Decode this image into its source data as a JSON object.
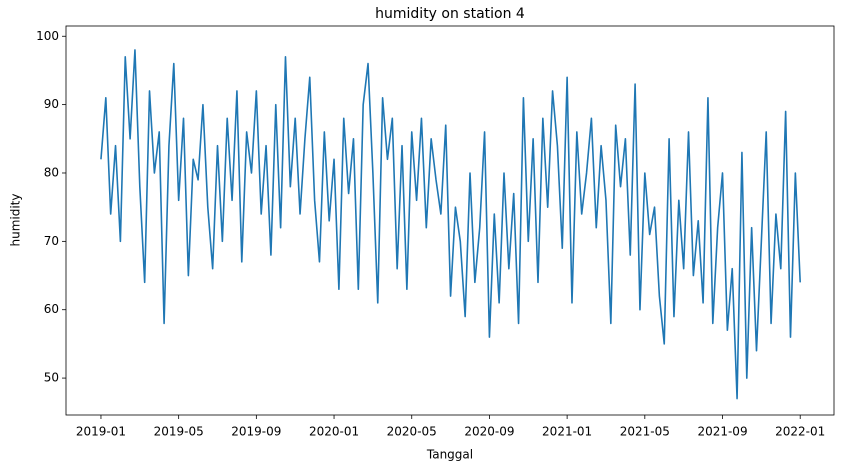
{
  "chart_data": {
    "type": "line",
    "title": "humidity on station 4",
    "x_label": "Tanggal",
    "y_label": "humidity",
    "x": [
      0,
      0.25,
      0.5,
      0.75,
      1,
      1.25,
      1.5,
      1.75,
      2,
      2.25,
      2.5,
      2.75,
      3,
      3.25,
      3.5,
      3.75,
      4,
      4.25,
      4.5,
      4.75,
      5,
      5.25,
      5.5,
      5.75,
      6,
      6.25,
      6.5,
      6.75,
      7,
      7.25,
      7.5,
      7.75,
      8,
      8.25,
      8.5,
      8.75,
      9,
      9.25,
      9.5,
      9.75,
      10,
      10.25,
      10.5,
      10.75,
      11,
      11.25,
      11.5,
      11.75,
      12,
      12.25,
      12.5,
      12.75,
      13,
      13.25,
      13.5,
      13.75,
      14,
      14.25,
      14.5,
      14.75,
      15,
      15.25,
      15.5,
      15.75,
      16,
      16.25,
      16.5,
      16.75,
      17,
      17.25,
      17.5,
      17.75,
      18,
      18.25,
      18.5,
      18.75,
      19,
      19.25,
      19.5,
      19.75,
      20,
      20.25,
      20.5,
      20.75,
      21,
      21.25,
      21.5,
      21.75,
      22,
      22.25,
      22.5,
      22.75,
      23,
      23.25,
      23.5,
      23.75,
      24,
      24.25,
      24.5,
      24.75,
      25,
      25.25,
      25.5,
      25.75,
      26,
      26.25,
      26.5,
      26.75,
      27,
      27.25,
      27.5,
      27.75,
      28,
      28.25,
      28.5,
      28.75,
      29,
      29.25,
      29.5,
      29.75,
      30,
      30.25,
      30.5,
      30.75,
      31,
      31.25,
      31.5,
      31.75,
      32,
      32.25,
      32.5,
      32.75,
      33,
      33.25,
      33.5,
      33.75,
      34,
      34.25,
      34.5,
      34.75,
      35,
      35.25,
      35.5,
      35.75,
      36
    ],
    "series": [
      {
        "name": "humidity",
        "color": "#1f77b4",
        "values": [
          82,
          91,
          74,
          84,
          70,
          97,
          85,
          98,
          78,
          64,
          92,
          80,
          86,
          58,
          84,
          96,
          76,
          88,
          65,
          82,
          79,
          90,
          75,
          66,
          84,
          70,
          88,
          76,
          92,
          67,
          86,
          80,
          92,
          74,
          84,
          68,
          90,
          72,
          97,
          78,
          88,
          74,
          85,
          94,
          76,
          67,
          86,
          73,
          82,
          63,
          88,
          77,
          85,
          63,
          90,
          96,
          80,
          61,
          91,
          82,
          88,
          66,
          84,
          63,
          86,
          76,
          88,
          72,
          85,
          79,
          74,
          87,
          62,
          75,
          70,
          59,
          80,
          64,
          72,
          86,
          56,
          74,
          61,
          80,
          66,
          77,
          58,
          91,
          70,
          85,
          64,
          88,
          75,
          92,
          84,
          69,
          94,
          61,
          86,
          74,
          80,
          88,
          72,
          84,
          76,
          58,
          87,
          78,
          85,
          68,
          93,
          60,
          80,
          71,
          75,
          62,
          55,
          85,
          59,
          76,
          66,
          86,
          65,
          73,
          61,
          91,
          58,
          72,
          80,
          57,
          66,
          47,
          83,
          50,
          72,
          54,
          70,
          86,
          58,
          74,
          66,
          89,
          56,
          80,
          64
        ]
      }
    ],
    "xlim": [
      -1.8,
      37.74
    ],
    "xticks": [
      {
        "value": 0,
        "label": "2019-01"
      },
      {
        "value": 4,
        "label": "2019-05"
      },
      {
        "value": 8,
        "label": "2019-09"
      },
      {
        "value": 12,
        "label": "2020-01"
      },
      {
        "value": 16,
        "label": "2020-05"
      },
      {
        "value": 20,
        "label": "2020-09"
      },
      {
        "value": 24,
        "label": "2021-01"
      },
      {
        "value": 28,
        "label": "2021-05"
      },
      {
        "value": 32,
        "label": "2021-09"
      },
      {
        "value": 36,
        "label": "2022-01"
      }
    ],
    "ylim": [
      44.6,
      101.5
    ],
    "yticks": [
      50,
      60,
      70,
      80,
      90,
      100
    ]
  }
}
